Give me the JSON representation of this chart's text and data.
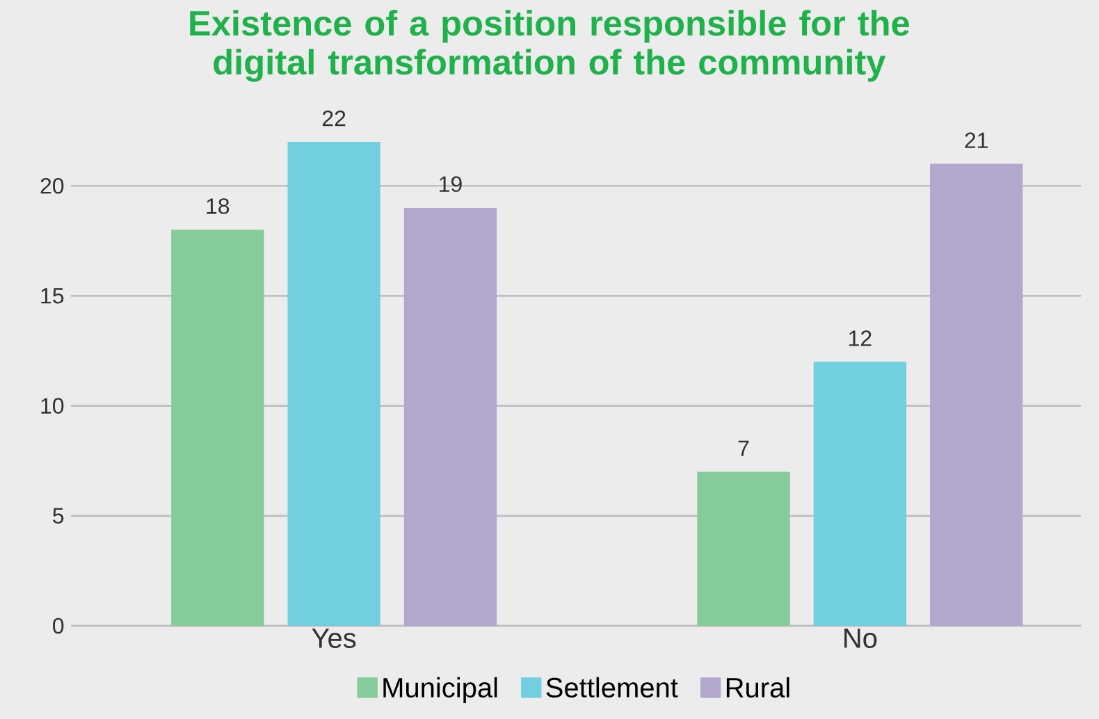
{
  "chart_data": {
    "type": "bar",
    "title": "Existence of a position responsible for the digital transformation of the community",
    "categories": [
      "Yes",
      "No"
    ],
    "series": [
      {
        "name": "Municipal",
        "color": "#86cb9a",
        "values": [
          18,
          7
        ]
      },
      {
        "name": "Settlement",
        "color": "#72cfe0",
        "values": [
          22,
          12
        ]
      },
      {
        "name": "Rural",
        "color": "#b3a7ce",
        "values": [
          19,
          21
        ]
      }
    ],
    "ylim": [
      0,
      22
    ],
    "yticks": [
      0,
      5,
      10,
      15,
      20
    ],
    "grid": "y",
    "legend": "bottom",
    "data_labels": true
  }
}
